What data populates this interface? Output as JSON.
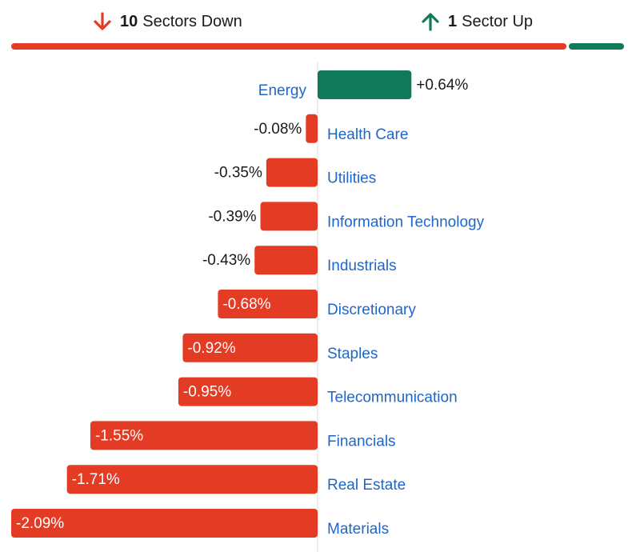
{
  "summary": {
    "down_count": "10",
    "down_text": "Sectors Down",
    "up_count": "1",
    "up_text": "Sector Up"
  },
  "colors": {
    "down": "#e43b24",
    "up": "#117a5b",
    "category_text": "#1f66c9",
    "value_text": "#1a1a1a",
    "axis": "#dddddd"
  },
  "icons": {
    "down": "arrow-down-icon",
    "up": "arrow-up-icon"
  },
  "chart_data": {
    "type": "bar",
    "orientation": "horizontal",
    "categories": [
      "Energy",
      "Health Care",
      "Utilities",
      "Information Technology",
      "Industrials",
      "Discretionary",
      "Staples",
      "Telecommunication",
      "Financials",
      "Real Estate",
      "Materials"
    ],
    "values": [
      0.64,
      -0.08,
      -0.35,
      -0.39,
      -0.43,
      -0.68,
      -0.92,
      -0.95,
      -1.55,
      -1.71,
      -2.09
    ],
    "value_labels": [
      "+0.64%",
      "-0.08%",
      "-0.35%",
      "-0.39%",
      "-0.43%",
      "-0.68%",
      "-0.92%",
      "-0.95%",
      "-1.55%",
      "-1.71%",
      "-2.09%"
    ],
    "title": "",
    "xlabel": "",
    "ylabel": "",
    "xlim": [
      -2.09,
      2.09
    ],
    "grid": false,
    "legend": "none"
  }
}
